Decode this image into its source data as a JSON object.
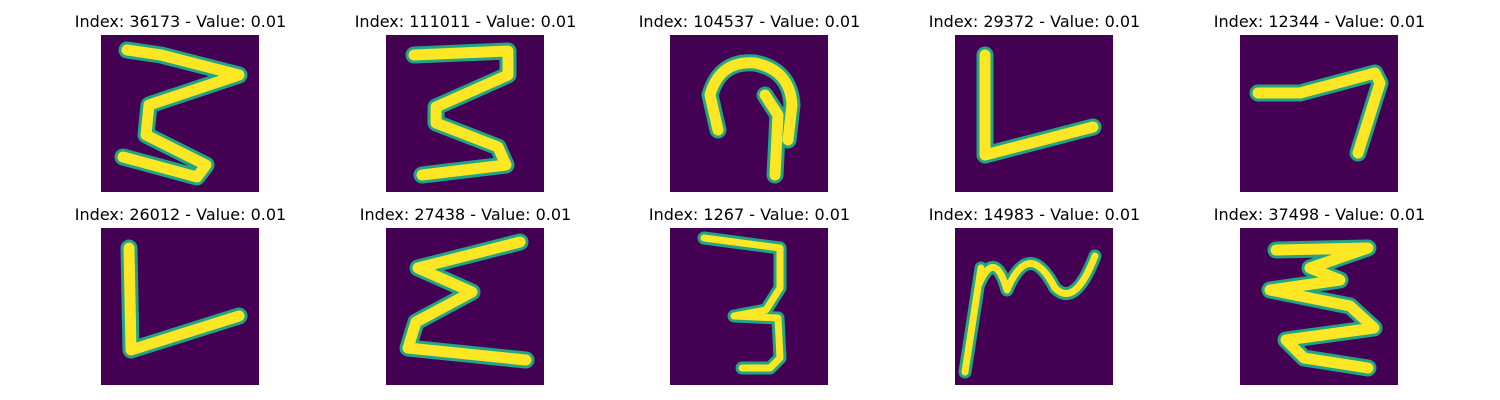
{
  "colors": {
    "background": "#440154",
    "stroke_outer": "#21a585",
    "stroke_inner": "#fde725",
    "text": "#000000"
  },
  "panels": [
    {
      "title": "Index: 36173 - Value: 0.01"
    },
    {
      "title": "Index: 111011 - Value: 0.01"
    },
    {
      "title": "Index: 104537 - Value: 0.01"
    },
    {
      "title": "Index: 29372 - Value: 0.01"
    },
    {
      "title": "Index: 12344 - Value: 0.01"
    },
    {
      "title": "Index: 26012 - Value: 0.01"
    },
    {
      "title": "Index: 27438 - Value: 0.01"
    },
    {
      "title": "Index: 1267 - Value: 0.01"
    },
    {
      "title": "Index: 14983 - Value: 0.01"
    },
    {
      "title": "Index: 37498 - Value: 0.01"
    }
  ]
}
